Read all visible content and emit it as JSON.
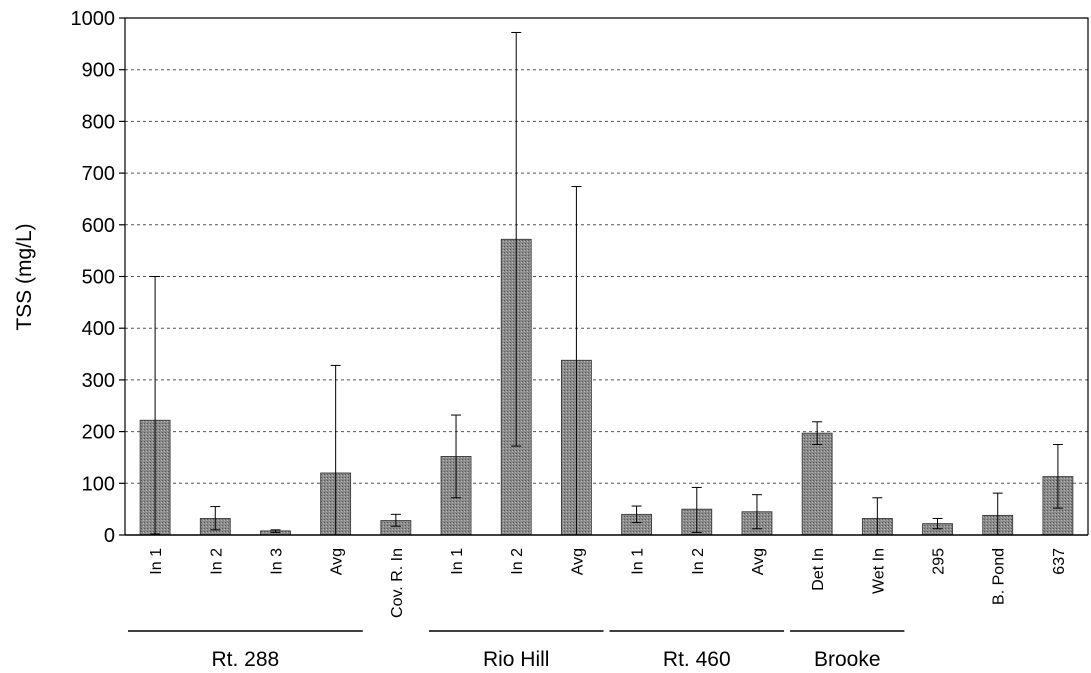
{
  "chart_data": {
    "type": "bar",
    "title": "",
    "xlabel": "",
    "ylabel": "TSS (mg/L)",
    "ylim": [
      0,
      1000
    ],
    "yticks": [
      0,
      100,
      200,
      300,
      400,
      500,
      600,
      700,
      800,
      900,
      1000
    ],
    "grid": true,
    "legend": "none",
    "bar_color": "#8a8a8a",
    "categories": [
      "In 1",
      "In 2",
      "In 3",
      "Avg",
      "Cov. R. In",
      "In 1",
      "In 2",
      "Avg",
      "In 1",
      "In 2",
      "Avg",
      "Det In",
      "Wet In",
      "295",
      "B. Pond",
      "637"
    ],
    "values": [
      222,
      32,
      8,
      120,
      28,
      152,
      572,
      338,
      40,
      50,
      45,
      197,
      32,
      22,
      38,
      113
    ],
    "error_low": [
      2,
      10,
      5,
      0,
      17,
      72,
      172,
      0,
      24,
      5,
      12,
      175,
      0,
      12,
      0,
      52
    ],
    "error_high": [
      500,
      55,
      10,
      328,
      40,
      232,
      972,
      674,
      56,
      92,
      78,
      219,
      72,
      32,
      81,
      175
    ],
    "groups": [
      {
        "label": "Rt. 288",
        "from": 0,
        "to": 3
      },
      {
        "label": "Rio Hill",
        "from": 5,
        "to": 7
      },
      {
        "label": "Rt. 460",
        "from": 8,
        "to": 10
      },
      {
        "label": "Brooke",
        "from": 11,
        "to": 12
      }
    ]
  }
}
